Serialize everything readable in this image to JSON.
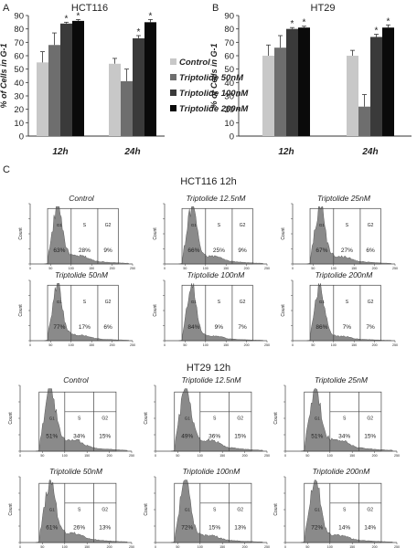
{
  "panel_labels": {
    "a": "A",
    "b": "B",
    "c": "C"
  },
  "chart_data": [
    {
      "type": "bar",
      "title": "HCT116",
      "ylabel": "% of Cells in G-1",
      "ylim": [
        0,
        90
      ],
      "yticks": [
        0,
        10,
        20,
        30,
        40,
        50,
        60,
        70,
        80,
        90
      ],
      "categories": [
        "12h",
        "24h"
      ],
      "series": [
        {
          "name": "Control",
          "values": [
            55,
            54
          ],
          "errors": [
            8,
            4
          ],
          "color": "#c8c8c8"
        },
        {
          "name": "Triptolide 50nM",
          "values": [
            68,
            41
          ],
          "errors": [
            9,
            9
          ],
          "color": "#6e6e6e"
        },
        {
          "name": "Triptolide 100nM",
          "values": [
            84,
            73
          ],
          "errors": [
            1,
            2
          ],
          "color": "#3a3a3a"
        },
        {
          "name": "Triptolide 200nM",
          "values": [
            86,
            85
          ],
          "errors": [
            1,
            2
          ],
          "color": "#0a0a0a"
        }
      ],
      "significance": [
        "",
        "",
        "*",
        "*",
        "",
        "",
        "*",
        "*"
      ]
    },
    {
      "type": "bar",
      "title": "HT29",
      "ylabel": "% of Cells in G-1",
      "ylim": [
        0,
        90
      ],
      "yticks": [
        0,
        10,
        20,
        30,
        40,
        50,
        60,
        70,
        80,
        90
      ],
      "categories": [
        "12h",
        "24h"
      ],
      "series": [
        {
          "name": "Control",
          "values": [
            60,
            60
          ],
          "errors": [
            8,
            4
          ],
          "color": "#c8c8c8"
        },
        {
          "name": "Triptolide 50nM",
          "values": [
            66,
            22
          ],
          "errors": [
            9,
            9
          ],
          "color": "#6e6e6e"
        },
        {
          "name": "Triptolide 100nM",
          "values": [
            80,
            74
          ],
          "errors": [
            1,
            2
          ],
          "color": "#3a3a3a"
        },
        {
          "name": "Triptolide 200nM",
          "values": [
            81,
            81
          ],
          "errors": [
            1,
            2
          ],
          "color": "#0a0a0a"
        }
      ],
      "significance": [
        "",
        "",
        "*",
        "*",
        "",
        "",
        "*",
        "*"
      ]
    }
  ],
  "flow": {
    "hct_title": "HCT116 12h",
    "hct_panels": [
      {
        "title": "Control",
        "g1": "63%",
        "s": "28%",
        "g2": "9%"
      },
      {
        "title": "Triptolide 12.5nM",
        "g1": "66%",
        "s": "25%",
        "g2": "9%"
      },
      {
        "title": "Triptolide 25nM",
        "g1": "67%",
        "s": "27%",
        "g2": "6%"
      },
      {
        "title": "Triptolide  50nM",
        "g1": "77%",
        "s": "17%",
        "g2": "6%"
      },
      {
        "title": "Triptolide 100nM",
        "g1": "84%",
        "s": "9%",
        "g2": "7%"
      },
      {
        "title": "Triptolide 200nM",
        "g1": "86%",
        "s": "7%",
        "g2": "7%"
      }
    ],
    "ht_title": "HT29 12h",
    "ht_panels": [
      {
        "title": "Control",
        "g1": "51%",
        "s": "34%",
        "g2": "15%"
      },
      {
        "title": "Triptolide 12.5nM",
        "g1": "49%",
        "s": "36%",
        "g2": "15%"
      },
      {
        "title": "Triptolide 25nM",
        "g1": "51%",
        "s": "34%",
        "g2": "15%"
      },
      {
        "title": "Triptolide  50nM",
        "g1": "61%",
        "s": "26%",
        "g2": "13%"
      },
      {
        "title": "Triptolide 100nM",
        "g1": "72%",
        "s": "15%",
        "g2": "13%"
      },
      {
        "title": "Triptolide 200nM",
        "g1": "72%",
        "s": "14%",
        "g2": "14%"
      }
    ],
    "region_labels": {
      "g1": "G1",
      "s": "S",
      "g2": "G2"
    },
    "ylabel": "Count",
    "xticks": [
      "0",
      "50",
      "100",
      "150",
      "200",
      "250"
    ]
  }
}
